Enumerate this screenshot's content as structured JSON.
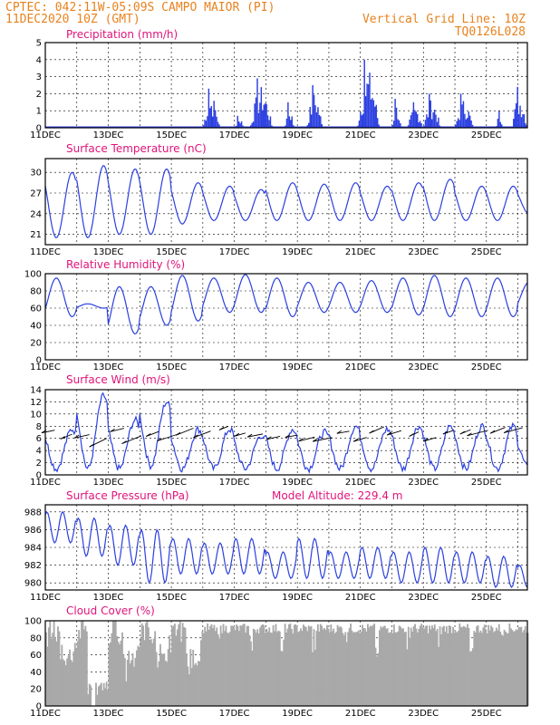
{
  "header": {
    "line1": "CPTEC:   042:11W-05:09S   CAMPO MAIOR (PI)",
    "line2": "11DEC2020 10Z (GMT)",
    "right1": "Vertical Grid Line: 10Z",
    "right2": "TQ0126L028"
  },
  "colors": {
    "header": "#e8821e",
    "title": "#e0147a",
    "series": "#2b3fe0",
    "cloud": "#a9a9a9"
  },
  "x_labels": [
    "11DEC",
    "13DEC",
    "15DEC",
    "17DEC",
    "19DEC",
    "21DEC",
    "23DEC",
    "25DEC"
  ],
  "x_range_days": [
    11,
    26.3
  ],
  "chart_data": [
    {
      "type": "bar",
      "title": "Precipitation  (mm/h)",
      "ylim": [
        0,
        5
      ],
      "yticks": [
        0,
        1,
        2,
        3,
        4,
        5
      ],
      "bursts": [
        {
          "x": 16.0,
          "w": 0.55,
          "peak": 2.3
        },
        {
          "x": 17.0,
          "w": 0.35,
          "peak": 0.7
        },
        {
          "x": 17.5,
          "w": 0.7,
          "peak": 2.9
        },
        {
          "x": 18.6,
          "w": 0.3,
          "peak": 1.5
        },
        {
          "x": 19.3,
          "w": 0.5,
          "peak": 2.5
        },
        {
          "x": 20.9,
          "w": 0.7,
          "peak": 4.0
        },
        {
          "x": 22.0,
          "w": 0.3,
          "peak": 1.7
        },
        {
          "x": 22.5,
          "w": 0.5,
          "peak": 1.5
        },
        {
          "x": 23.0,
          "w": 0.55,
          "peak": 2.0
        },
        {
          "x": 24.0,
          "w": 0.6,
          "peak": 2.0
        },
        {
          "x": 25.3,
          "w": 0.25,
          "peak": 1.0
        },
        {
          "x": 25.8,
          "w": 0.5,
          "peak": 2.4
        }
      ]
    },
    {
      "type": "line",
      "title": "Surface Temperature  (nC)",
      "ylim": [
        19.5,
        32
      ],
      "yticks": [
        21,
        24,
        27,
        30
      ],
      "max": [
        30,
        31,
        30.5,
        30.5,
        28.5,
        28,
        27.5,
        28.5,
        28.3,
        28.5,
        28,
        28.5,
        29,
        28,
        28,
        27.5
      ],
      "min": [
        20.5,
        20.5,
        21,
        21,
        22.5,
        23,
        23,
        23,
        23,
        23,
        23,
        23,
        23,
        23,
        23,
        24
      ]
    },
    {
      "type": "line",
      "title": "Relative Humidity  (%)",
      "ylim": [
        0,
        100
      ],
      "yticks": [
        0,
        20,
        40,
        60,
        80,
        100
      ],
      "max": [
        95,
        65,
        85,
        85,
        98,
        95,
        99,
        95,
        90,
        90,
        92,
        95,
        98,
        95,
        95,
        90
      ],
      "min": [
        50,
        60,
        30,
        40,
        45,
        55,
        55,
        50,
        55,
        55,
        55,
        52,
        50,
        50,
        50,
        60
      ]
    },
    {
      "type": "line",
      "title": "Surface Wind  (m/s)",
      "ylim": [
        0,
        14
      ],
      "yticks": [
        0,
        2,
        4,
        6,
        8,
        10,
        12,
        14
      ],
      "max": [
        7.5,
        13,
        9,
        12,
        7.5,
        7.5,
        6.5,
        7.5,
        7,
        8,
        7.5,
        8,
        8,
        8,
        8,
        6
      ],
      "min": [
        1,
        1,
        1,
        1.5,
        1,
        1,
        1,
        1,
        1,
        1,
        1,
        1,
        1,
        1,
        1,
        1
      ]
    },
    {
      "type": "line",
      "title": "Surface Pressure  (hPa)",
      "subtitle": "Model Altitude: 229.4  m",
      "ylim": [
        979.2,
        988.8
      ],
      "yticks": [
        980,
        982,
        984,
        986,
        988
      ],
      "max": [
        988,
        987.3,
        986.5,
        986,
        985,
        984.5,
        985,
        983.5,
        985,
        983.5,
        984,
        983.5,
        984,
        983.5,
        983,
        982
      ],
      "min": [
        984.5,
        983,
        982,
        980,
        981,
        981,
        981,
        980.5,
        980.5,
        980.5,
        980.5,
        980,
        980,
        980,
        979.5,
        979.5
      ]
    },
    {
      "type": "bar",
      "title": "Cloud Cover  (%)",
      "ylim": [
        0,
        100
      ],
      "yticks": [
        0,
        20,
        40,
        60,
        80,
        100
      ]
    }
  ]
}
